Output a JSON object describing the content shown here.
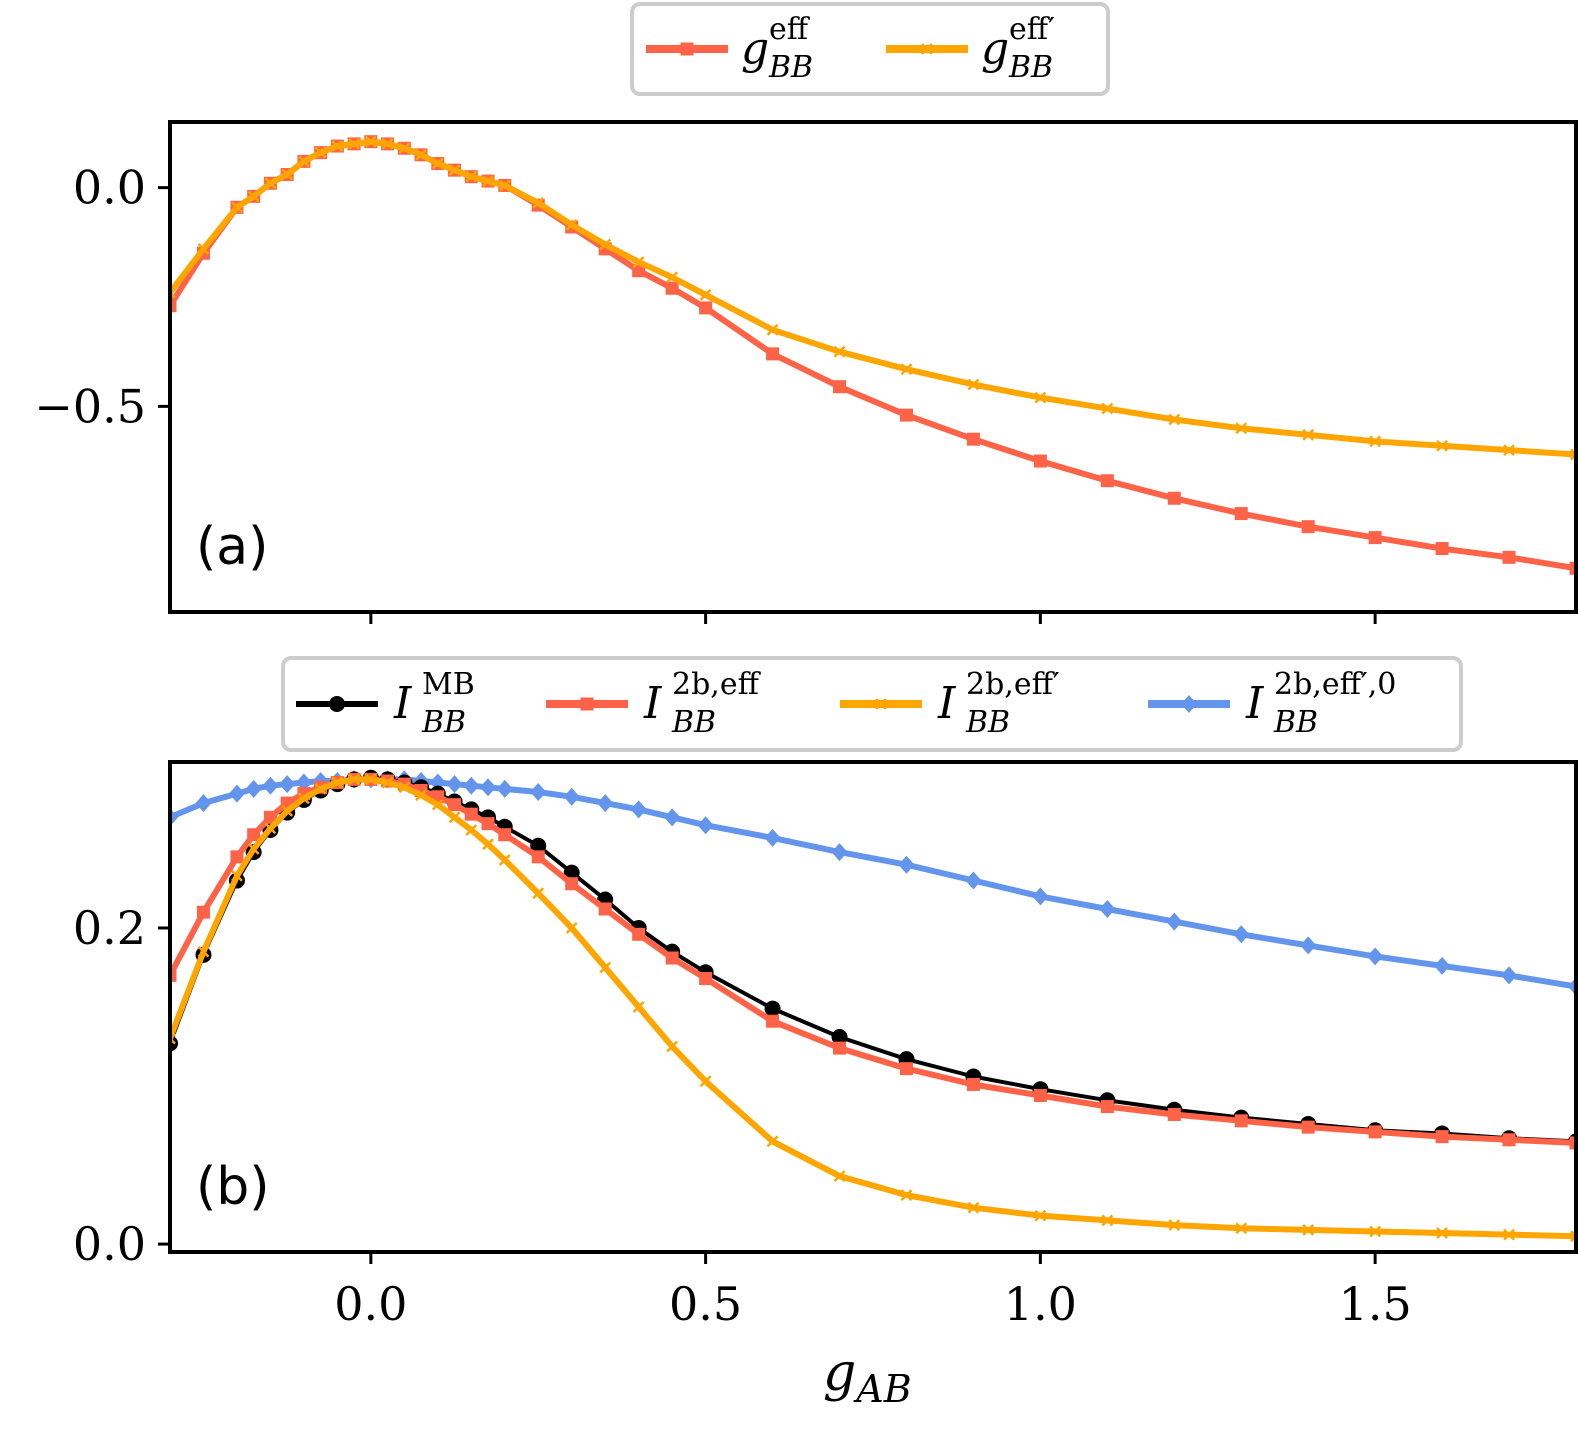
{
  "chart_data": [
    {
      "type": "line",
      "panel_label": "(a)",
      "xlabel": "",
      "xlim": [
        -0.3,
        1.8
      ],
      "ylim": [
        -0.97,
        0.15
      ],
      "yticks": [
        0.0,
        -0.5
      ],
      "ytick_labels": [
        "0.0",
        "−0.5"
      ],
      "xticks": [
        0.0,
        0.5,
        1.0,
        1.5
      ],
      "legend": {
        "placement": "above",
        "columns": 2
      },
      "series": [
        {
          "name": "g_BB^eff",
          "legend_label": "g",
          "legend_sub": "BB",
          "legend_sup": "eff",
          "color": "#ff6347",
          "marker": "square",
          "x": [
            -0.3,
            -0.25,
            -0.2,
            -0.175,
            -0.15,
            -0.125,
            -0.1,
            -0.075,
            -0.05,
            -0.025,
            0.0,
            0.025,
            0.05,
            0.075,
            0.1,
            0.125,
            0.15,
            0.175,
            0.2,
            0.25,
            0.3,
            0.35,
            0.4,
            0.45,
            0.5,
            0.6,
            0.7,
            0.8,
            0.9,
            1.0,
            1.1,
            1.2,
            1.3,
            1.4,
            1.5,
            1.6,
            1.7,
            1.8
          ],
          "y": [
            -0.27,
            -0.15,
            -0.045,
            -0.02,
            0.01,
            0.03,
            0.06,
            0.08,
            0.095,
            0.1,
            0.105,
            0.1,
            0.09,
            0.075,
            0.055,
            0.04,
            0.025,
            0.015,
            0.005,
            -0.04,
            -0.09,
            -0.14,
            -0.19,
            -0.23,
            -0.275,
            -0.38,
            -0.455,
            -0.52,
            -0.575,
            -0.625,
            -0.67,
            -0.71,
            -0.745,
            -0.775,
            -0.8,
            -0.825,
            -0.845,
            -0.87
          ]
        },
        {
          "name": "g_BB^eff'",
          "legend_label": "g",
          "legend_sub": "BB",
          "legend_sup": "eff′",
          "color": "#ffa500",
          "marker": "x",
          "x": [
            -0.3,
            -0.25,
            -0.2,
            -0.175,
            -0.15,
            -0.125,
            -0.1,
            -0.075,
            -0.05,
            -0.025,
            0.0,
            0.025,
            0.05,
            0.075,
            0.1,
            0.125,
            0.15,
            0.175,
            0.2,
            0.25,
            0.3,
            0.35,
            0.4,
            0.45,
            0.5,
            0.6,
            0.7,
            0.8,
            0.9,
            1.0,
            1.1,
            1.2,
            1.3,
            1.4,
            1.5,
            1.6,
            1.7,
            1.8
          ],
          "y": [
            -0.24,
            -0.14,
            -0.045,
            -0.02,
            0.01,
            0.03,
            0.06,
            0.08,
            0.095,
            0.1,
            0.105,
            0.1,
            0.09,
            0.075,
            0.055,
            0.04,
            0.025,
            0.015,
            0.005,
            -0.035,
            -0.085,
            -0.13,
            -0.17,
            -0.205,
            -0.245,
            -0.325,
            -0.375,
            -0.415,
            -0.45,
            -0.48,
            -0.505,
            -0.53,
            -0.55,
            -0.565,
            -0.58,
            -0.59,
            -0.6,
            -0.61
          ]
        }
      ]
    },
    {
      "type": "line",
      "panel_label": "(b)",
      "xlabel": "g",
      "xlabel_sub": "AB",
      "xlim": [
        -0.3,
        1.8
      ],
      "ylim": [
        -0.005,
        0.305
      ],
      "yticks": [
        0.0,
        0.2
      ],
      "ytick_labels": [
        "0.0",
        "0.2"
      ],
      "xticks": [
        0.0,
        0.5,
        1.0,
        1.5
      ],
      "xtick_labels": [
        "0.0",
        "0.5",
        "1.0",
        "1.5"
      ],
      "legend": {
        "placement": "above",
        "columns": 4
      },
      "series": [
        {
          "name": "I_BB^MB",
          "legend_label": "I",
          "legend_sub": "BB",
          "legend_sup": "MB",
          "color": "#000000",
          "marker": "circle",
          "x": [
            -0.3,
            -0.25,
            -0.2,
            -0.175,
            -0.15,
            -0.125,
            -0.1,
            -0.075,
            -0.05,
            -0.025,
            0.0,
            0.025,
            0.05,
            0.075,
            0.1,
            0.125,
            0.15,
            0.175,
            0.2,
            0.25,
            0.3,
            0.35,
            0.4,
            0.45,
            0.5,
            0.6,
            0.7,
            0.8,
            0.9,
            1.0,
            1.1,
            1.2,
            1.3,
            1.4,
            1.5,
            1.6,
            1.7,
            1.8
          ],
          "y": [
            0.127,
            0.183,
            0.23,
            0.248,
            0.262,
            0.273,
            0.281,
            0.287,
            0.291,
            0.294,
            0.295,
            0.294,
            0.292,
            0.289,
            0.285,
            0.28,
            0.275,
            0.27,
            0.264,
            0.252,
            0.235,
            0.218,
            0.2,
            0.185,
            0.172,
            0.149,
            0.131,
            0.117,
            0.106,
            0.098,
            0.091,
            0.085,
            0.08,
            0.076,
            0.072,
            0.07,
            0.067,
            0.065
          ]
        },
        {
          "name": "I_BB^2b,eff",
          "legend_label": "I",
          "legend_sub": "BB",
          "legend_sup": "2b,eff",
          "color": "#ff6347",
          "marker": "square",
          "x": [
            -0.3,
            -0.25,
            -0.2,
            -0.175,
            -0.15,
            -0.125,
            -0.1,
            -0.075,
            -0.05,
            -0.025,
            0.0,
            0.025,
            0.05,
            0.075,
            0.1,
            0.125,
            0.15,
            0.175,
            0.2,
            0.25,
            0.3,
            0.35,
            0.4,
            0.45,
            0.5,
            0.6,
            0.7,
            0.8,
            0.9,
            1.0,
            1.1,
            1.2,
            1.3,
            1.4,
            1.5,
            1.6,
            1.7,
            1.8
          ],
          "y": [
            0.17,
            0.21,
            0.245,
            0.259,
            0.27,
            0.279,
            0.285,
            0.289,
            0.292,
            0.294,
            0.294,
            0.293,
            0.291,
            0.287,
            0.283,
            0.278,
            0.272,
            0.266,
            0.259,
            0.245,
            0.228,
            0.212,
            0.196,
            0.181,
            0.168,
            0.141,
            0.124,
            0.111,
            0.101,
            0.094,
            0.087,
            0.082,
            0.078,
            0.074,
            0.071,
            0.068,
            0.066,
            0.064
          ]
        },
        {
          "name": "I_BB^2b,eff'",
          "legend_label": "I",
          "legend_sub": "BB",
          "legend_sup": "2b,eff′",
          "color": "#ffa500",
          "marker": "x",
          "x": [
            -0.3,
            -0.25,
            -0.2,
            -0.175,
            -0.15,
            -0.125,
            -0.1,
            -0.075,
            -0.05,
            -0.025,
            0.0,
            0.025,
            0.05,
            0.075,
            0.1,
            0.125,
            0.15,
            0.175,
            0.2,
            0.25,
            0.3,
            0.35,
            0.4,
            0.45,
            0.5,
            0.6,
            0.7,
            0.8,
            0.9,
            1.0,
            1.1,
            1.2,
            1.3,
            1.4,
            1.5,
            1.6,
            1.7,
            1.8
          ],
          "y": [
            0.13,
            0.185,
            0.233,
            0.25,
            0.263,
            0.274,
            0.282,
            0.288,
            0.292,
            0.294,
            0.294,
            0.292,
            0.289,
            0.284,
            0.278,
            0.27,
            0.262,
            0.253,
            0.243,
            0.222,
            0.2,
            0.175,
            0.15,
            0.125,
            0.103,
            0.065,
            0.043,
            0.031,
            0.023,
            0.018,
            0.015,
            0.012,
            0.01,
            0.009,
            0.008,
            0.007,
            0.006,
            0.005
          ]
        },
        {
          "name": "I_BB^2b,eff',0",
          "legend_label": "I",
          "legend_sub": "BB",
          "legend_sup": "2b,eff′,0",
          "color": "#6495ed",
          "marker": "diamond",
          "x": [
            -0.3,
            -0.25,
            -0.2,
            -0.175,
            -0.15,
            -0.125,
            -0.1,
            -0.075,
            -0.05,
            -0.025,
            0.0,
            0.025,
            0.05,
            0.075,
            0.1,
            0.125,
            0.15,
            0.175,
            0.2,
            0.25,
            0.3,
            0.35,
            0.4,
            0.45,
            0.5,
            0.6,
            0.7,
            0.8,
            0.9,
            1.0,
            1.1,
            1.2,
            1.3,
            1.4,
            1.5,
            1.6,
            1.7,
            1.8
          ],
          "y": [
            0.27,
            0.279,
            0.285,
            0.288,
            0.29,
            0.291,
            0.292,
            0.293,
            0.293,
            0.294,
            0.294,
            0.294,
            0.294,
            0.293,
            0.292,
            0.291,
            0.29,
            0.289,
            0.288,
            0.286,
            0.283,
            0.279,
            0.275,
            0.27,
            0.265,
            0.257,
            0.248,
            0.24,
            0.23,
            0.22,
            0.212,
            0.204,
            0.196,
            0.189,
            0.182,
            0.176,
            0.17,
            0.163
          ]
        }
      ]
    }
  ]
}
